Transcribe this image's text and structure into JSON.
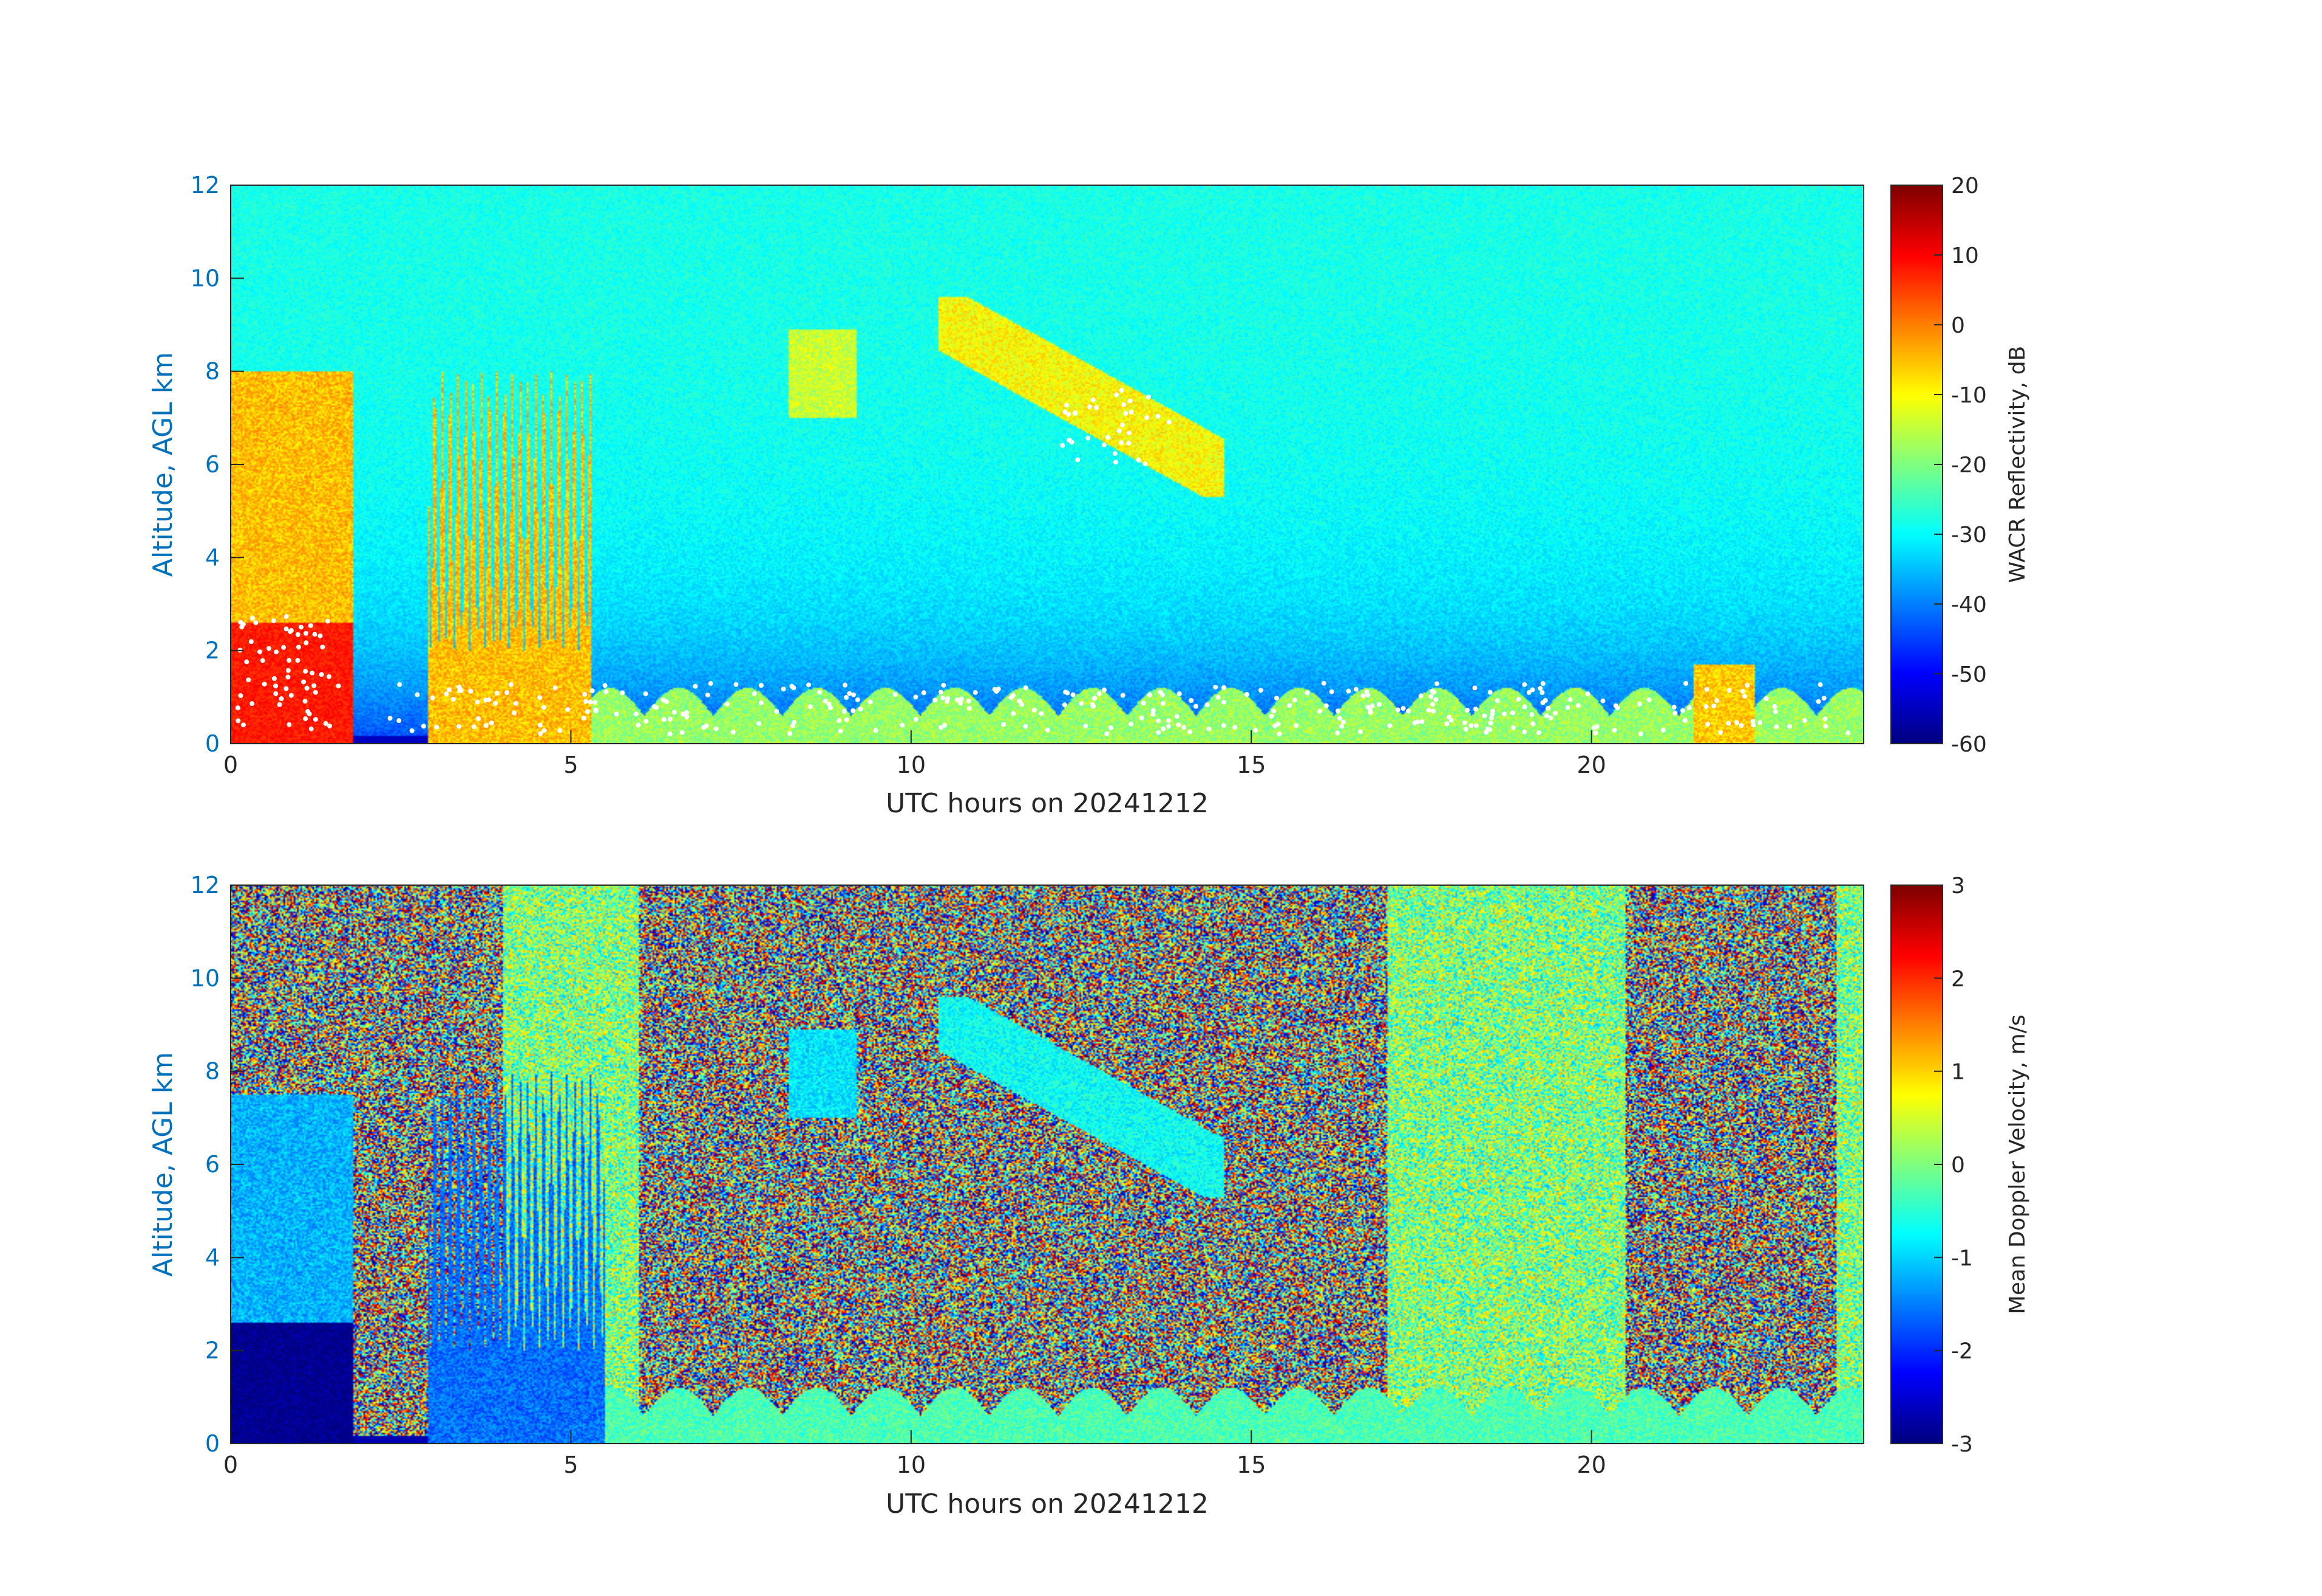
{
  "chart_data": [
    {
      "type": "heatmap",
      "variable": "WACR Reflectivity",
      "xlabel": "UTC hours on 20241212",
      "ylabel": "Altitude, AGL km",
      "xlim": [
        0,
        24
      ],
      "ylim": [
        0,
        12
      ],
      "x_ticks": [
        0,
        5,
        10,
        15,
        20
      ],
      "y_ticks": [
        0,
        2,
        4,
        6,
        8,
        10,
        12
      ],
      "colorbar": {
        "label": "WACR Reflectivity, dB",
        "range": [
          -60,
          20
        ],
        "ticks": [
          20,
          10,
          0,
          -10,
          -20,
          -30,
          -40,
          -50,
          -60
        ],
        "colormap": "jet"
      },
      "background_value_range": [
        -45,
        -28
      ],
      "features": [
        {
          "name": "low cloud/precip",
          "x": [
            0.0,
            1.8
          ],
          "y": [
            0.0,
            8.0
          ],
          "value": -5,
          "core_value": 8
        },
        {
          "name": "convective towers",
          "x": [
            2.9,
            5.3
          ],
          "y": [
            0.0,
            8.2
          ],
          "value": -5
        },
        {
          "name": "boundary layer cloud",
          "x": [
            5.3,
            24.0
          ],
          "y": [
            0.0,
            1.4
          ],
          "value": -18
        },
        {
          "name": "mid-level cloud",
          "x": [
            8.2,
            9.2
          ],
          "y": [
            7.0,
            8.9
          ],
          "value": -14
        },
        {
          "name": "cirrus band",
          "x": [
            10.4,
            14.6
          ],
          "y": [
            5.3,
            9.6
          ],
          "value": -10
        },
        {
          "name": "low echo",
          "x": [
            21.5,
            22.4
          ],
          "y": [
            0.0,
            1.7
          ],
          "value": -6
        }
      ],
      "overlay": "cloud base points (white dots)"
    },
    {
      "type": "heatmap",
      "variable": "Mean Doppler Velocity",
      "xlabel": "UTC hours on 20241212",
      "ylabel": "Altitude, AGL km",
      "xlim": [
        0,
        24
      ],
      "ylim": [
        0,
        12
      ],
      "x_ticks": [
        0,
        5,
        10,
        15,
        20
      ],
      "y_ticks": [
        0,
        2,
        4,
        6,
        8,
        10,
        12
      ],
      "colorbar": {
        "label": "Mean Doppler Velocity, m/s",
        "range": [
          -3,
          3
        ],
        "ticks": [
          3,
          2,
          1,
          0,
          -1,
          -2,
          -3
        ],
        "colormap": "jet"
      },
      "features": [
        {
          "name": "precip below 2.6 km",
          "x": [
            0.0,
            1.8
          ],
          "y": [
            0.0,
            2.6
          ],
          "value": -3
        },
        {
          "name": "ice above precip",
          "x": [
            0.0,
            1.8
          ],
          "y": [
            2.6,
            7.5
          ],
          "value": -1.2
        },
        {
          "name": "convective towers",
          "x": [
            2.9,
            5.5
          ],
          "y": [
            0.0,
            8.2
          ],
          "value": -1.6
        },
        {
          "name": "boundary layer cloud",
          "x": [
            5.5,
            24.0
          ],
          "y": [
            0.0,
            1.2
          ],
          "value": -0.3
        },
        {
          "name": "mid-level cloud",
          "x": [
            8.2,
            9.2
          ],
          "y": [
            7.0,
            8.9
          ],
          "value": -0.9
        },
        {
          "name": "cirrus band",
          "x": [
            10.4,
            14.6
          ],
          "y": [
            5.3,
            9.6
          ],
          "value": -0.7
        }
      ],
      "noise_segments": [
        {
          "x": [
            0,
            4
          ],
          "kind": "random"
        },
        {
          "x": [
            4,
            6
          ],
          "kind": "greenish"
        },
        {
          "x": [
            6,
            17
          ],
          "kind": "random"
        },
        {
          "x": [
            17,
            20.5
          ],
          "kind": "greenish"
        },
        {
          "x": [
            20.5,
            22
          ],
          "kind": "random"
        },
        {
          "x": [
            22,
            23.6
          ],
          "kind": "random"
        },
        {
          "x": [
            23.6,
            24
          ],
          "kind": "greenish"
        }
      ]
    }
  ]
}
